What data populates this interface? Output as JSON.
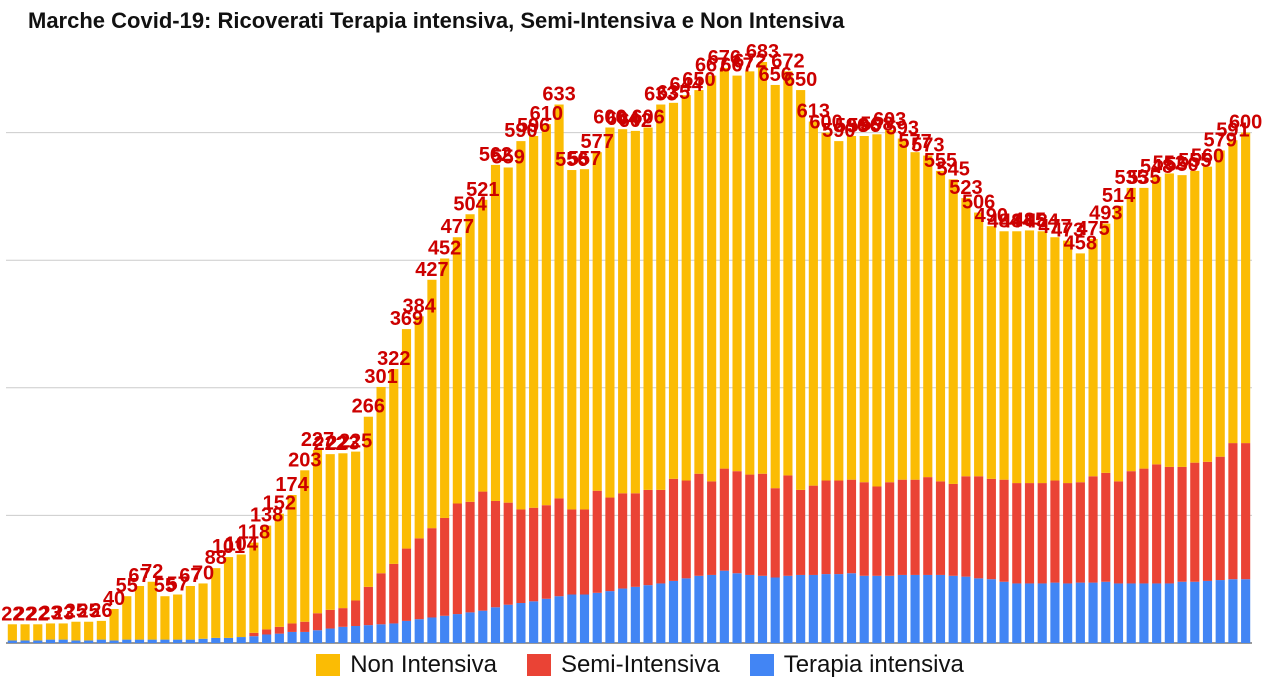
{
  "chart_data": {
    "type": "bar",
    "stacked": true,
    "title": "Marche Covid-19: Ricoverati Terapia intensiva, Semi-Intensiva e Non Intensiva",
    "legend_position": "bottom",
    "grid": true,
    "ylim": [
      0,
      750
    ],
    "colors": {
      "terapia_intensiva": "#4285f4",
      "semi_intensiva": "#ea4335",
      "non_intensiva": "#fbbc04",
      "labels": "#cc0000"
    },
    "series": [
      {
        "name": "Non Intensiva",
        "key": "non_intensiva"
      },
      {
        "name": "Semi-Intensiva",
        "key": "semi_intensiva"
      },
      {
        "name": "Terapia intensiva",
        "key": "terapia_intensiva"
      }
    ],
    "totals": [
      22,
      22,
      22,
      23,
      23,
      25,
      25,
      26,
      40,
      55,
      67,
      72,
      55,
      57,
      67,
      70,
      88,
      101,
      104,
      118,
      138,
      152,
      174,
      203,
      227,
      222,
      223,
      225,
      266,
      301,
      322,
      369,
      384,
      427,
      452,
      477,
      504,
      521,
      562,
      559,
      590,
      596,
      610,
      633,
      556,
      557,
      577,
      606,
      604,
      602,
      606,
      633,
      635,
      644,
      650,
      667,
      676,
      667,
      672,
      683,
      656,
      672,
      650,
      613,
      600,
      590,
      596,
      596,
      598,
      603,
      593,
      577,
      573,
      555,
      545,
      523,
      506,
      490,
      484,
      484,
      485,
      484,
      477,
      473,
      458,
      475,
      493,
      514,
      535,
      535,
      548,
      552,
      550,
      555,
      560,
      579,
      591,
      600
    ],
    "semi_intensiva": [
      0,
      0,
      0,
      0,
      0,
      0,
      0,
      0,
      0,
      0,
      0,
      0,
      0,
      0,
      0,
      0,
      0,
      0,
      0,
      4,
      6,
      8,
      10,
      12,
      20,
      22,
      22,
      30,
      45,
      60,
      70,
      85,
      95,
      105,
      115,
      130,
      130,
      140,
      125,
      120,
      110,
      110,
      110,
      115,
      100,
      100,
      120,
      110,
      112,
      110,
      112,
      110,
      120,
      115,
      120,
      110,
      120,
      120,
      118,
      120,
      105,
      118,
      100,
      105,
      110,
      110,
      110,
      110,
      105,
      110,
      112,
      112,
      115,
      110,
      108,
      118,
      120,
      118,
      120,
      118,
      118,
      118,
      120,
      118,
      118,
      125,
      128,
      120,
      132,
      135,
      140,
      137,
      135,
      140,
      140,
      145,
      160,
      160
    ],
    "terapia_intensiva": [
      3,
      3,
      3,
      4,
      4,
      3,
      3,
      4,
      3,
      4,
      4,
      4,
      4,
      4,
      4,
      5,
      6,
      6,
      7,
      8,
      10,
      11,
      13,
      13,
      15,
      17,
      19,
      20,
      21,
      22,
      23,
      26,
      28,
      30,
      32,
      34,
      36,
      38,
      42,
      45,
      47,
      49,
      52,
      55,
      57,
      57,
      59,
      61,
      64,
      66,
      68,
      70,
      73,
      76,
      79,
      80,
      85,
      82,
      80,
      79,
      77,
      79,
      80,
      80,
      81,
      81,
      82,
      79,
      79,
      79,
      80,
      80,
      80,
      80,
      79,
      78,
      76,
      75,
      72,
      70,
      70,
      70,
      71,
      70,
      71,
      71,
      72,
      70,
      70,
      70,
      70,
      70,
      72,
      72,
      73,
      74,
      75,
      75
    ]
  }
}
